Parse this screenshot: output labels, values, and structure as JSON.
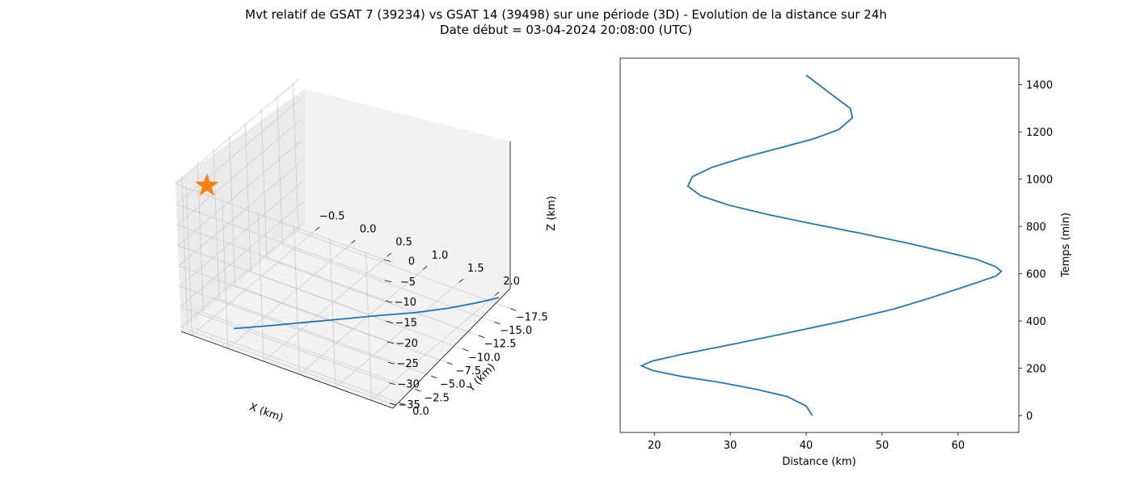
{
  "title": "Mvt relatif de GSAT 7 (39234) vs GSAT 14 (39498) sur une période (3D) - Evolution de la distance sur 24h",
  "subtitle": "Date début = 03-04-2024 20:08:00 (UTC)",
  "colors": {
    "series": "#1f77b4",
    "marker": "#ff7f0e",
    "pane_light": "#f2f2f2",
    "pane_dark": "#ebebeb",
    "grid": "#cccccc"
  },
  "chart_data": [
    {
      "type": "line3d",
      "title": "",
      "xlabel": "X (km)",
      "ylabel": "Y (km)",
      "zlabel": "Z (km)",
      "x_ticks": [
        "−0.5",
        "0.0",
        "0.5",
        "1.0",
        "1.5",
        "2.0"
      ],
      "y_ticks": [
        "0.0",
        "−2.5",
        "−5.0",
        "−7.5",
        "−10.0",
        "−12.5",
        "−15.0",
        "−17.5"
      ],
      "z_ticks": [
        "0",
        "−5",
        "−10",
        "−15",
        "−20",
        "−25",
        "−30",
        "−35"
      ],
      "xlim": [
        -0.65,
        2.3
      ],
      "ylim": [
        -18.5,
        1.0
      ],
      "zlim": [
        -36,
        0.5
      ],
      "grid": true,
      "series": [
        {
          "x": [
            0.0,
            0.3,
            0.6,
            0.9,
            1.2,
            1.5,
            1.75,
            1.95,
            2.1
          ],
          "y": [
            0.0,
            -2.3,
            -4.6,
            -6.9,
            -9.2,
            -11.5,
            -13.8,
            -16.1,
            -18.0
          ],
          "z": [
            -32.5,
            -32.9,
            -33.2,
            -33.5,
            -33.8,
            -34.2,
            -34.6,
            -35.0,
            -35.3
          ]
        }
      ],
      "marker": {
        "symbol": "star",
        "x": -0.3,
        "y": 0.0,
        "z": 0.5
      }
    },
    {
      "type": "line",
      "title": "",
      "xlabel": "Distance (km)",
      "ylabel": "Temps (min)",
      "x_ticks": [
        20,
        30,
        40,
        50,
        60
      ],
      "y_ticks": [
        0,
        200,
        400,
        600,
        800,
        1000,
        1200,
        1400
      ],
      "xlim": [
        15.5,
        68.0
      ],
      "ylim": [
        -72,
        1512
      ],
      "yaxis_side": "right",
      "grid": false,
      "series": [
        {
          "distance": [
            40.8,
            40.0,
            37.5,
            33.5,
            28.6,
            23.6,
            19.8,
            18.3,
            19.7,
            23.8,
            30.1,
            37.6,
            45.0,
            51.5,
            56.6,
            60.4,
            63.2,
            65.0,
            65.7,
            64.9,
            62.5,
            58.6,
            53.3,
            47.3,
            41.0,
            35.0,
            29.8,
            26.1,
            24.4,
            25.0,
            27.6,
            31.6,
            36.2,
            40.9,
            44.3,
            46.1,
            45.8,
            43.7,
            40.0
          ],
          "time": [
            0,
            40,
            80,
            110,
            140,
            165,
            190,
            210,
            230,
            260,
            300,
            350,
            400,
            450,
            500,
            540,
            570,
            590,
            610,
            630,
            660,
            690,
            730,
            770,
            810,
            850,
            890,
            930,
            970,
            1010,
            1050,
            1090,
            1130,
            1170,
            1210,
            1260,
            1300,
            1350,
            1440
          ]
        }
      ]
    }
  ]
}
